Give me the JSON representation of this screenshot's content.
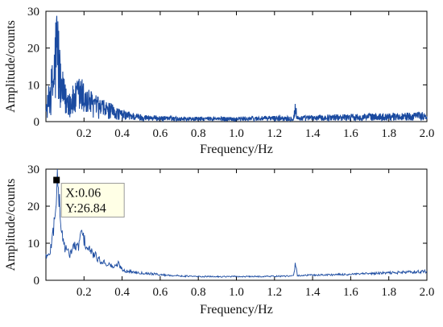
{
  "chart_data": [
    {
      "type": "line",
      "title": "",
      "xlabel": "Frequency/Hz",
      "ylabel": "Amplitude/counts",
      "xlim": [
        0,
        2.0
      ],
      "ylim": [
        0,
        30
      ],
      "xticks": [
        0.2,
        0.4,
        0.6,
        0.8,
        1.0,
        1.2,
        1.4,
        1.6,
        1.8,
        2.0
      ],
      "xtick_labels": [
        "0.2",
        "0.4",
        "0.6",
        "0.8",
        "1.0",
        "1.2",
        "1.4",
        "1.6",
        "1.8",
        "2.0"
      ],
      "yticks": [
        0,
        10,
        20,
        30
      ],
      "ytick_labels": [
        "0",
        "10",
        "20",
        "30"
      ],
      "grid": false,
      "color": "#1a4aa0",
      "series": [
        {
          "x": [
            0.0,
            0.02,
            0.04,
            0.05,
            0.06,
            0.07,
            0.08,
            0.1,
            0.12,
            0.15,
            0.18,
            0.2,
            0.22,
            0.25,
            0.28,
            0.3,
            0.35,
            0.4,
            0.5,
            0.6,
            0.7,
            0.8,
            0.9,
            1.0,
            1.1,
            1.2,
            1.3,
            1.31,
            1.32,
            1.4,
            1.5,
            1.6,
            1.7,
            1.8,
            1.9,
            2.0
          ],
          "y": [
            3.0,
            9.0,
            14.0,
            22.0,
            26.5,
            18.0,
            12.0,
            8.0,
            7.0,
            7.5,
            10.0,
            8.0,
            7.0,
            6.0,
            5.0,
            4.5,
            3.5,
            2.5,
            1.5,
            1.2,
            1.0,
            1.0,
            1.0,
            1.0,
            1.1,
            1.2,
            1.2,
            4.8,
            1.2,
            1.3,
            1.5,
            1.6,
            1.7,
            1.8,
            1.9,
            2.0
          ]
        }
      ]
    },
    {
      "type": "line",
      "title": "",
      "xlabel": "Frequency/Hz",
      "ylabel": "Amplitude/counts",
      "xlim": [
        0,
        2.0
      ],
      "ylim": [
        0,
        30
      ],
      "xticks": [
        0.2,
        0.4,
        0.6,
        0.8,
        1.0,
        1.2,
        1.4,
        1.6,
        1.8,
        2.0
      ],
      "xtick_labels": [
        "0.2",
        "0.4",
        "0.6",
        "0.8",
        "1.0",
        "1.2",
        "1.4",
        "1.6",
        "1.8",
        "2.0"
      ],
      "yticks": [
        0,
        10,
        20,
        30
      ],
      "ytick_labels": [
        "0",
        "10",
        "20",
        "30"
      ],
      "grid": false,
      "color": "#1a4aa0",
      "series": [
        {
          "x": [
            0.0,
            0.01,
            0.02,
            0.03,
            0.04,
            0.05,
            0.06,
            0.07,
            0.08,
            0.09,
            0.1,
            0.11,
            0.12,
            0.13,
            0.14,
            0.15,
            0.16,
            0.17,
            0.18,
            0.19,
            0.2,
            0.21,
            0.22,
            0.24,
            0.26,
            0.28,
            0.3,
            0.32,
            0.34,
            0.36,
            0.38,
            0.4,
            0.42,
            0.45,
            0.5,
            0.55,
            0.6,
            0.7,
            0.8,
            0.9,
            1.0,
            1.1,
            1.2,
            1.28,
            1.3,
            1.31,
            1.32,
            1.34,
            1.4,
            1.5,
            1.6,
            1.7,
            1.8,
            1.9,
            2.0
          ],
          "y": [
            7.0,
            6.0,
            7.5,
            10.0,
            14.0,
            20.0,
            26.84,
            22.0,
            14.0,
            11.0,
            9.0,
            8.0,
            7.0,
            7.5,
            8.5,
            9.5,
            8.5,
            9.0,
            12.0,
            12.5,
            11.0,
            9.5,
            8.5,
            7.5,
            6.5,
            5.5,
            5.0,
            4.5,
            4.0,
            3.5,
            4.5,
            3.0,
            2.5,
            2.3,
            2.0,
            1.8,
            1.5,
            1.2,
            1.0,
            1.0,
            1.0,
            1.0,
            1.1,
            1.1,
            1.2,
            4.6,
            1.3,
            1.3,
            1.4,
            1.5,
            1.6,
            1.8,
            2.0,
            2.2,
            2.4
          ]
        }
      ],
      "datatip": {
        "x_text": "X:0.06",
        "y_text": "Y:26.84",
        "x": 0.06,
        "y": 26.84
      }
    }
  ]
}
